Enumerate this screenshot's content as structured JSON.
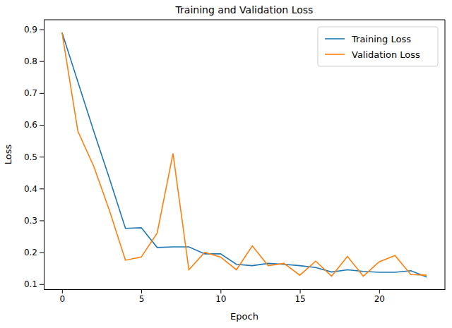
{
  "chart_data": {
    "type": "line",
    "title": "Training and Validation Loss",
    "x_label": "Epoch",
    "y_label": "Loss",
    "x": [
      0,
      1,
      2,
      3,
      4,
      5,
      6,
      7,
      8,
      9,
      10,
      11,
      12,
      13,
      14,
      15,
      16,
      17,
      18,
      19,
      20,
      21,
      22,
      23
    ],
    "series": [
      {
        "name": "Training Loss",
        "color": "#1f77b4",
        "values": [
          0.89,
          0.735,
          0.58,
          0.43,
          0.275,
          0.277,
          0.215,
          0.217,
          0.217,
          0.195,
          0.195,
          0.162,
          0.158,
          0.165,
          0.162,
          0.158,
          0.152,
          0.138,
          0.145,
          0.14,
          0.137,
          0.137,
          0.142,
          0.122
        ]
      },
      {
        "name": "Validation Loss",
        "color": "#ff7f0e",
        "values": [
          0.89,
          0.58,
          0.47,
          0.33,
          0.175,
          0.185,
          0.26,
          0.51,
          0.145,
          0.2,
          0.185,
          0.145,
          0.22,
          0.158,
          0.165,
          0.128,
          0.172,
          0.125,
          0.187,
          0.125,
          0.17,
          0.19,
          0.13,
          0.128
        ]
      }
    ],
    "xlim": [
      -1.15,
      24.15
    ],
    "xticks": [
      0,
      5,
      10,
      15,
      20
    ],
    "ylim": [
      0.084,
      0.93
    ],
    "yticks": [
      0.1,
      0.2,
      0.3,
      0.4,
      0.5,
      0.6,
      0.7,
      0.8,
      0.9
    ],
    "legend": "upper right",
    "grid": false
  }
}
